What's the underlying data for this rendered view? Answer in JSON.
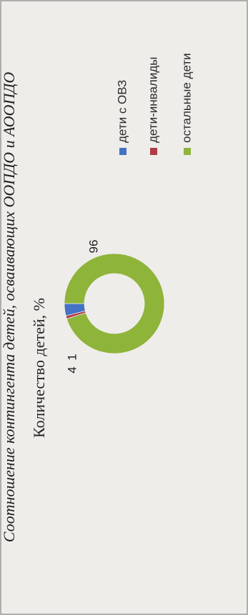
{
  "page_header": {
    "caption": "Соотношение контингента детей, осваивающих ООПДО и АООПДО"
  },
  "chart_data": {
    "type": "pie",
    "variant": "donut",
    "title": "Количество детей, %",
    "categories": [
      "дети с ОВЗ",
      "дети-инвалиды",
      "остальные дети"
    ],
    "values": [
      4,
      1,
      96
    ],
    "data_labels": [
      "4",
      "1",
      "96"
    ],
    "colors": [
      "#4472c4",
      "#b03a48",
      "#8fb43a"
    ],
    "legend_position": "right",
    "orientation": "rotated 90° counter-clockwise"
  }
}
